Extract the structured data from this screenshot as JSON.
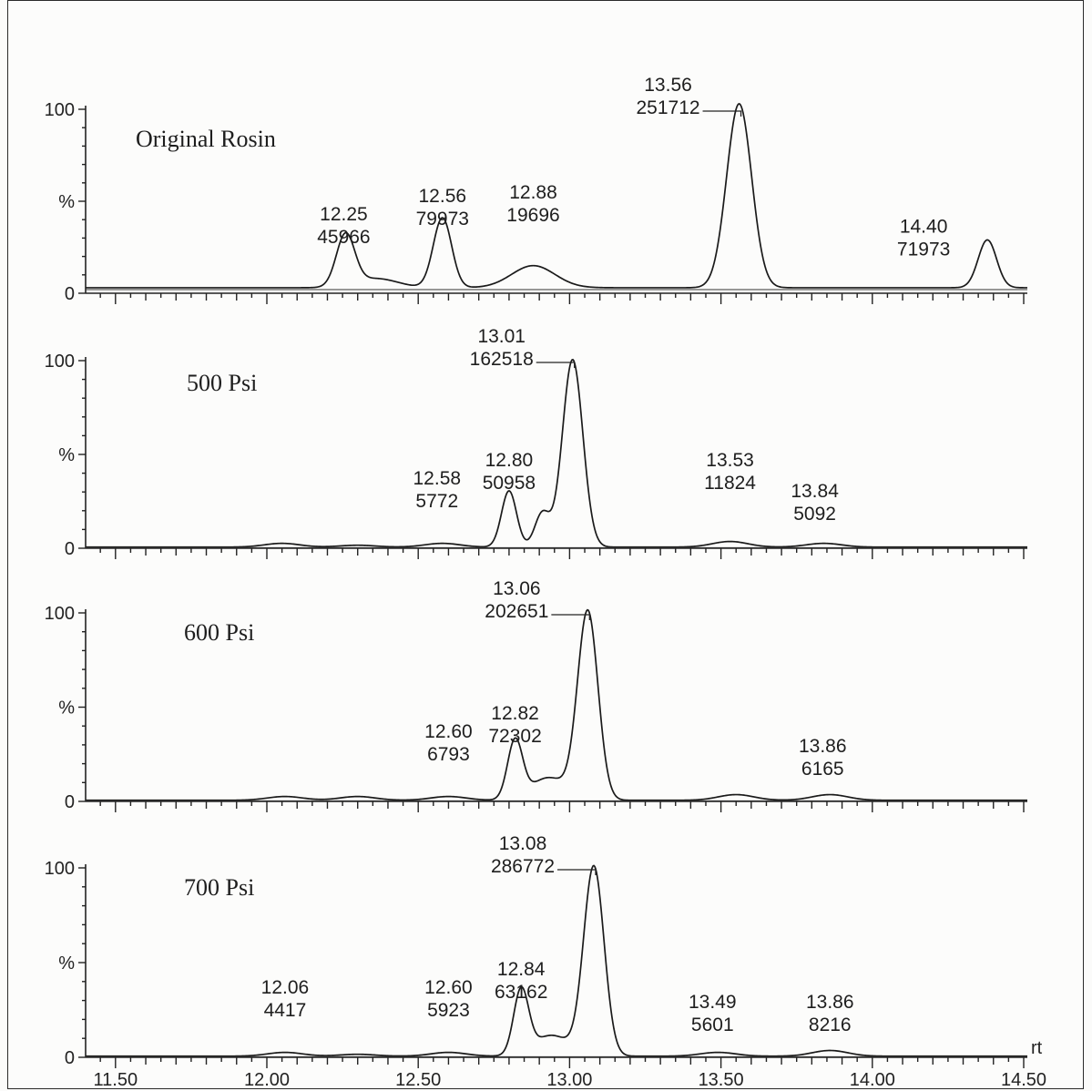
{
  "chart_data": {
    "type": "line",
    "xlabel": "rt",
    "xlim": [
      11.3,
      14.5
    ],
    "x_ticks": [
      "11.50",
      "12.00",
      "12.50",
      "13.00",
      "13.50",
      "14.00",
      "14.50"
    ],
    "y_tick_labels": [
      "100",
      "%",
      "0"
    ],
    "panels": [
      {
        "name": "Original Rosin",
        "peaks": [
          {
            "rt": "12.25",
            "area": "45966",
            "x": 12.26,
            "height": 28
          },
          {
            "rt": "",
            "area": "",
            "x": 12.36,
            "height": 5
          },
          {
            "rt": "12.56",
            "area": "79973",
            "x": 12.58,
            "height": 38
          },
          {
            "rt": "12.88",
            "area": "19696",
            "x": 12.88,
            "height": 12
          },
          {
            "rt": "13.56",
            "area": "251712",
            "x": 13.56,
            "height": 100
          },
          {
            "rt": "14.40",
            "area": "71973",
            "x": 14.38,
            "height": 26
          }
        ]
      },
      {
        "name": "500 Psi",
        "peaks": [
          {
            "rt": "",
            "area": "",
            "x": 12.05,
            "height": 2
          },
          {
            "rt": "",
            "area": "",
            "x": 12.3,
            "height": 1
          },
          {
            "rt": "12.58",
            "area": "5772",
            "x": 12.58,
            "height": 2
          },
          {
            "rt": "12.80",
            "area": "50958",
            "x": 12.8,
            "height": 30
          },
          {
            "rt": "",
            "area": "",
            "x": 12.91,
            "height": 18
          },
          {
            "rt": "13.01",
            "area": "162518",
            "x": 13.01,
            "height": 100
          },
          {
            "rt": "13.53",
            "area": "11824",
            "x": 13.53,
            "height": 3
          },
          {
            "rt": "13.84",
            "area": "5092",
            "x": 13.84,
            "height": 2
          }
        ]
      },
      {
        "name": "600 Psi",
        "peaks": [
          {
            "rt": "",
            "area": "",
            "x": 12.06,
            "height": 2
          },
          {
            "rt": "",
            "area": "",
            "x": 12.3,
            "height": 2
          },
          {
            "rt": "12.60",
            "area": "6793",
            "x": 12.6,
            "height": 2
          },
          {
            "rt": "12.82",
            "area": "72302",
            "x": 12.82,
            "height": 31
          },
          {
            "rt": "",
            "area": "",
            "x": 12.93,
            "height": 12
          },
          {
            "rt": "13.06",
            "area": "202651",
            "x": 13.06,
            "height": 100
          },
          {
            "rt": "",
            "area": "",
            "x": 13.55,
            "height": 3
          },
          {
            "rt": "13.86",
            "area": "6165",
            "x": 13.86,
            "height": 3
          }
        ]
      },
      {
        "name": "700 Psi",
        "peaks": [
          {
            "rt": "12.06",
            "area": "4417",
            "x": 12.06,
            "height": 2
          },
          {
            "rt": "",
            "area": "",
            "x": 12.3,
            "height": 1
          },
          {
            "rt": "12.60",
            "area": "5923",
            "x": 12.6,
            "height": 2
          },
          {
            "rt": "12.84",
            "area": "63162",
            "x": 12.84,
            "height": 34
          },
          {
            "rt": "",
            "area": "",
            "x": 12.94,
            "height": 11
          },
          {
            "rt": "13.08",
            "area": "286772",
            "x": 13.08,
            "height": 100
          },
          {
            "rt": "13.49",
            "area": "5601",
            "x": 13.49,
            "height": 2
          },
          {
            "rt": "13.86",
            "area": "8216",
            "x": 13.86,
            "height": 3
          }
        ]
      }
    ]
  }
}
